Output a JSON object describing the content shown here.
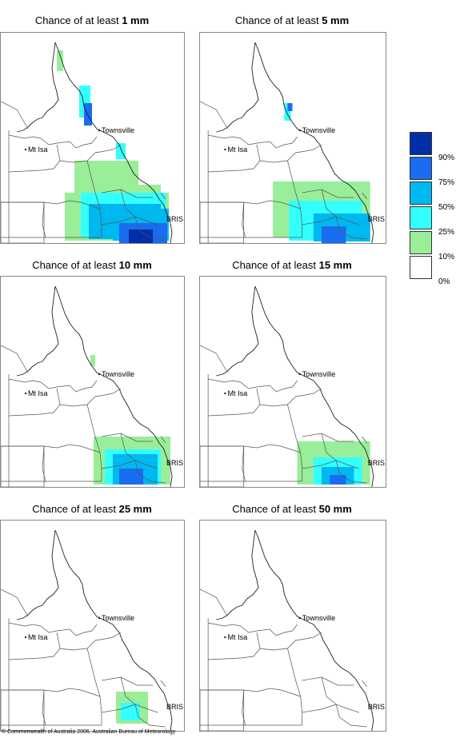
{
  "panels": [
    {
      "title_prefix": "Chance of at least ",
      "amount": "1 mm"
    },
    {
      "title_prefix": "Chance of at least ",
      "amount": "5 mm"
    },
    {
      "title_prefix": "Chance of at least ",
      "amount": "10 mm"
    },
    {
      "title_prefix": "Chance of at least ",
      "amount": "15 mm"
    },
    {
      "title_prefix": "Chance of at least ",
      "amount": "25 mm"
    },
    {
      "title_prefix": "Chance of at least ",
      "amount": "50 mm"
    }
  ],
  "places": {
    "townsville": "Townsville",
    "mt_isa": "Mt Isa",
    "bris": "BRIS"
  },
  "legend": {
    "labels": [
      "90%",
      "75%",
      "50%",
      "25%",
      "10%",
      "0%"
    ],
    "colors": [
      "#002fa7",
      "#1a6cf0",
      "#00b8f0",
      "#33ffff",
      "#99ee99",
      "#ffffff"
    ]
  },
  "copyright": "© Commonwealth of Australia 2006, Australian Bureau of Meteorology"
}
